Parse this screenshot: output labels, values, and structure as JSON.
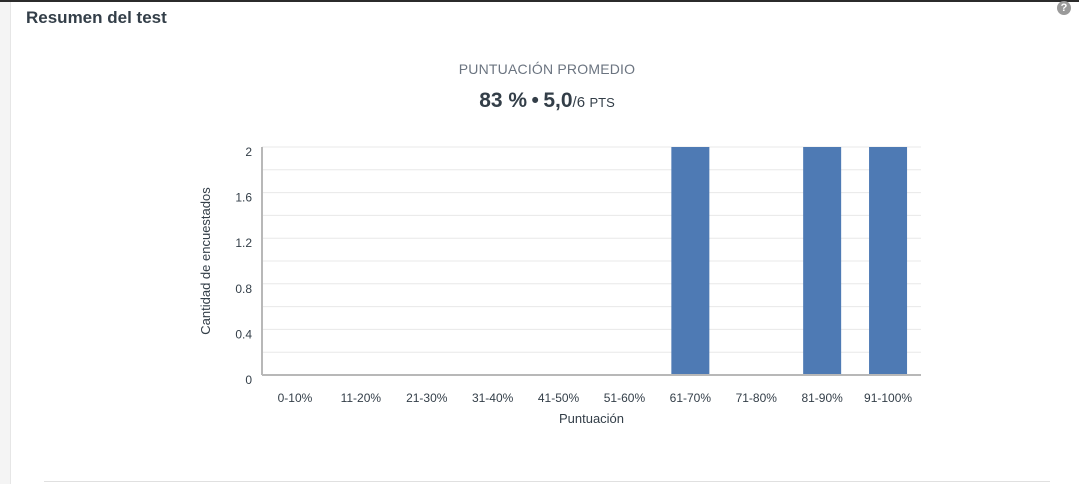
{
  "header": {
    "title": "Resumen del test",
    "help_icon": "?"
  },
  "summary": {
    "label": "PUNTUACIÓN PROMEDIO",
    "percent": "83 %",
    "separator": "•",
    "score": "5,0",
    "score_suffix": "/6",
    "pts_label": "PTS"
  },
  "colors": {
    "bar": "#4e7ab4",
    "grid": "#e8e8e8",
    "axis": "#b8b8b8"
  },
  "chart_data": {
    "type": "bar",
    "title": "",
    "xlabel": "Puntuación",
    "ylabel": "Cantidad de encuestados",
    "categories": [
      "0-10%",
      "11-20%",
      "21-30%",
      "31-40%",
      "41-50%",
      "51-60%",
      "61-70%",
      "71-80%",
      "81-90%",
      "91-100%"
    ],
    "values": [
      0,
      0,
      0,
      0,
      0,
      0,
      2,
      0,
      2,
      2
    ],
    "ylim": [
      0,
      2
    ],
    "yticks": [
      0,
      0.4,
      0.8,
      1.2,
      1.6,
      2
    ],
    "ytick_labels": [
      "0",
      "0.4",
      "0.8",
      "1.2",
      "1.6",
      "2"
    ],
    "grid": true
  }
}
